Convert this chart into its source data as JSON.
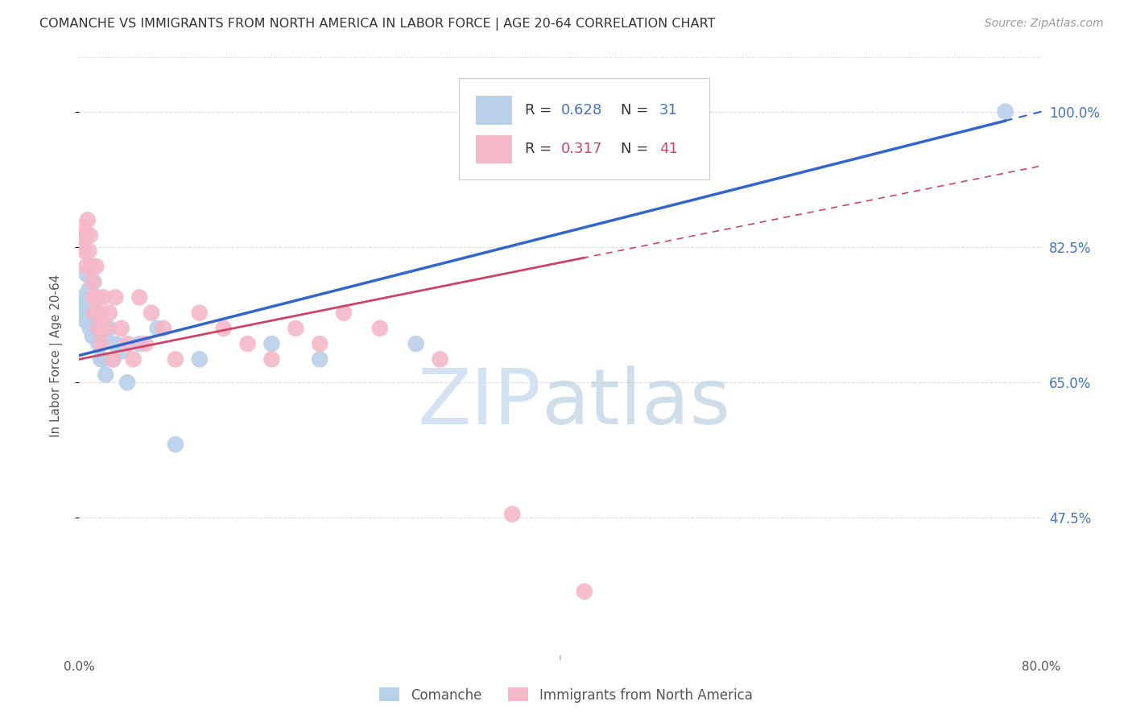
{
  "title": "COMANCHE VS IMMIGRANTS FROM NORTH AMERICA IN LABOR FORCE | AGE 20-64 CORRELATION CHART",
  "source": "Source: ZipAtlas.com",
  "xlim": [
    0.0,
    80.0
  ],
  "ylim": [
    30.0,
    107.0
  ],
  "yticks": [
    47.5,
    65.0,
    82.5,
    100.0
  ],
  "series1_name": "Comanche",
  "series1_color": "#b8d0e8",
  "series1_edge": "none",
  "series1_line_color": "#3366cc",
  "series1_R": 0.628,
  "series1_N": 31,
  "series2_name": "Immigrants from North America",
  "series2_color": "#f5b8c8",
  "series2_edge": "none",
  "series2_line_color": "#cc4466",
  "series2_R": 0.317,
  "series2_N": 41,
  "watermark_zip": "ZIP",
  "watermark_atlas": "atlas",
  "background_color": "#ffffff",
  "grid_color": "#dddddd",
  "title_color": "#333333",
  "source_color": "#999999",
  "ylabel_color": "#4472c4",
  "axis_label_color": "#555555",
  "comanche_x": [
    0.2,
    0.3,
    0.4,
    0.5,
    0.6,
    0.8,
    0.9,
    1.0,
    1.1,
    1.2,
    1.4,
    1.5,
    1.5,
    1.6,
    1.8,
    2.0,
    2.0,
    2.2,
    2.5,
    2.8,
    3.0,
    3.5,
    4.0,
    5.0,
    6.5,
    8.0,
    10.0,
    16.0,
    20.0,
    28.0,
    77.0
  ],
  "comanche_y": [
    76.0,
    75.0,
    74.0,
    73.0,
    79.0,
    77.0,
    72.0,
    74.0,
    71.0,
    78.0,
    73.0,
    76.0,
    72.0,
    70.0,
    68.0,
    71.0,
    68.0,
    66.0,
    72.0,
    68.0,
    70.0,
    69.0,
    65.0,
    70.0,
    72.0,
    57.0,
    68.0,
    70.0,
    68.0,
    70.0,
    100.0
  ],
  "immigrants_x": [
    0.2,
    0.3,
    0.4,
    0.5,
    0.6,
    0.7,
    0.8,
    0.9,
    1.0,
    1.1,
    1.2,
    1.3,
    1.4,
    1.5,
    1.6,
    1.7,
    1.8,
    2.0,
    2.2,
    2.5,
    2.8,
    3.0,
    3.5,
    4.0,
    4.5,
    5.0,
    5.5,
    6.0,
    7.0,
    8.0,
    10.0,
    12.0,
    14.0,
    16.0,
    18.0,
    20.0,
    22.0,
    25.0,
    30.0,
    36.0,
    42.0
  ],
  "immigrants_y": [
    83.0,
    85.0,
    82.0,
    84.0,
    80.0,
    86.0,
    82.0,
    84.0,
    80.0,
    78.0,
    76.0,
    74.0,
    80.0,
    76.0,
    72.0,
    74.0,
    70.0,
    76.0,
    72.0,
    74.0,
    68.0,
    76.0,
    72.0,
    70.0,
    68.0,
    76.0,
    70.0,
    74.0,
    72.0,
    68.0,
    74.0,
    72.0,
    70.0,
    68.0,
    72.0,
    70.0,
    74.0,
    72.0,
    68.0,
    48.0,
    38.0
  ],
  "blue_line_x0": 0.0,
  "blue_line_y0": 68.5,
  "blue_line_x1": 80.0,
  "blue_line_y1": 100.0,
  "blue_solid_end": 77.0,
  "pink_line_x0": 0.0,
  "pink_line_y0": 68.0,
  "pink_line_x1": 80.0,
  "pink_line_y1": 93.0,
  "pink_solid_end": 42.0
}
